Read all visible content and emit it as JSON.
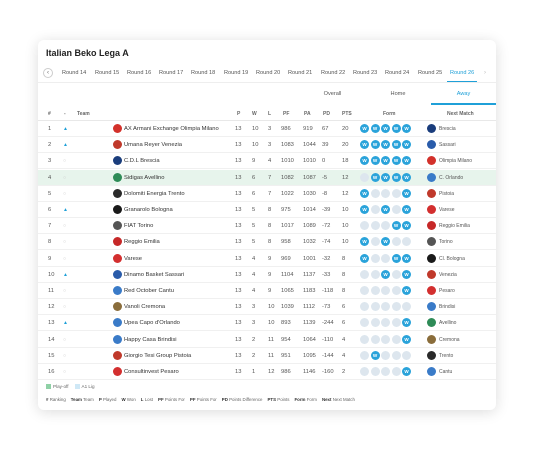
{
  "title": "Italian Beko Lega A",
  "rounds": [
    "Round 14",
    "Round 15",
    "Round 16",
    "Round 17",
    "Round 18",
    "Round 19",
    "Round 20",
    "Round 21",
    "Round 22",
    "Round 23",
    "Round 24",
    "Round 25",
    "Round 26"
  ],
  "active_round": "Round 26",
  "tabs": [
    "Overall",
    "Home",
    "Away"
  ],
  "active_tab": "Away",
  "columns": {
    "pos": "#",
    "move": "-",
    "team": "Team",
    "p": "P",
    "w": "W",
    "l": "L",
    "pf": "PF",
    "pa": "PA",
    "pd": "PD",
    "pts": "PTS",
    "form": "Form",
    "next": "Next Match"
  },
  "rows": [
    {
      "pos": "1",
      "move": "up",
      "team": "AX Armani Exchange Olimpia Milano",
      "p": "13",
      "w": "10",
      "l": "3",
      "pf": "986",
      "pa": "919",
      "pd": "67",
      "pts": "20",
      "form": [
        "W",
        "W",
        "W",
        "W",
        "W"
      ],
      "next": "Brescia",
      "logo": "#d3312b",
      "next_logo": "#1a3d7c",
      "highlight": false
    },
    {
      "pos": "2",
      "move": "up",
      "team": "Umana Reyer Venezia",
      "p": "13",
      "w": "10",
      "l": "3",
      "pf": "1083",
      "pa": "1044",
      "pd": "39",
      "pts": "20",
      "form": [
        "W",
        "W",
        "W",
        "W",
        "W"
      ],
      "next": "Sassari",
      "logo": "#c0392b",
      "next_logo": "#2a5caa",
      "highlight": false
    },
    {
      "pos": "3",
      "move": "none",
      "team": "C.D.L Brescia",
      "p": "13",
      "w": "9",
      "l": "4",
      "pf": "1010",
      "pa": "1010",
      "pd": "0",
      "pts": "18",
      "form": [
        "W",
        "W",
        "W",
        "W",
        "W"
      ],
      "next": "Olimpia Milano",
      "logo": "#1a3d7c",
      "next_logo": "#d3312b",
      "highlight": false
    },
    {
      "pos": "4",
      "move": "none",
      "team": "Sidigas Avellino",
      "p": "13",
      "w": "6",
      "l": "7",
      "pf": "1082",
      "pa": "1087",
      "pd": "-5",
      "pts": "12",
      "form": [
        "L",
        "W",
        "W",
        "W",
        "W"
      ],
      "next": "C. Orlando",
      "logo": "#2e8b57",
      "next_logo": "#3a7bc8",
      "highlight": true
    },
    {
      "pos": "5",
      "move": "none",
      "team": "Dolomiti Energia Trento",
      "p": "13",
      "w": "6",
      "l": "7",
      "pf": "1022",
      "pa": "1030",
      "pd": "-8",
      "pts": "12",
      "form": [
        "W",
        "L",
        "L",
        "L",
        "W"
      ],
      "next": "Pistoia",
      "logo": "#2a2a2a",
      "next_logo": "#c0392b",
      "highlight": false
    },
    {
      "pos": "6",
      "move": "up",
      "team": "Granarolo Bologna",
      "p": "13",
      "w": "5",
      "l": "8",
      "pf": "975",
      "pa": "1014",
      "pd": "-39",
      "pts": "10",
      "form": [
        "W",
        "L",
        "W",
        "L",
        "W"
      ],
      "next": "Varese",
      "logo": "#1a1a1a",
      "next_logo": "#d32f2f",
      "highlight": false
    },
    {
      "pos": "7",
      "move": "none",
      "team": "FIAT Torino",
      "p": "13",
      "w": "5",
      "l": "8",
      "pf": "1017",
      "pa": "1089",
      "pd": "-72",
      "pts": "10",
      "form": [
        "L",
        "L",
        "L",
        "W",
        "W"
      ],
      "next": "Reggio Emilia",
      "logo": "#555555",
      "next_logo": "#c62828",
      "highlight": false
    },
    {
      "pos": "8",
      "move": "none",
      "team": "Reggio Emilia",
      "p": "13",
      "w": "5",
      "l": "8",
      "pf": "958",
      "pa": "1032",
      "pd": "-74",
      "pts": "10",
      "form": [
        "W",
        "L",
        "W",
        "L",
        "L"
      ],
      "next": "Torino",
      "logo": "#c62828",
      "next_logo": "#555555",
      "highlight": false
    },
    {
      "pos": "9",
      "move": "none",
      "team": "Varese",
      "p": "13",
      "w": "4",
      "l": "9",
      "pf": "969",
      "pa": "1001",
      "pd": "-32",
      "pts": "8",
      "form": [
        "W",
        "L",
        "L",
        "W",
        "W"
      ],
      "next": "Cl. Bologna",
      "logo": "#d32f2f",
      "next_logo": "#1a1a1a",
      "highlight": false
    },
    {
      "pos": "10",
      "move": "up",
      "team": "Dinamo Basket Sassari",
      "p": "13",
      "w": "4",
      "l": "9",
      "pf": "1104",
      "pa": "1137",
      "pd": "-33",
      "pts": "8",
      "form": [
        "L",
        "L",
        "W",
        "L",
        "W"
      ],
      "next": "Venezia",
      "logo": "#2a5caa",
      "next_logo": "#c0392b",
      "highlight": false
    },
    {
      "pos": "11",
      "move": "none",
      "team": "Red October Cantu",
      "p": "13",
      "w": "4",
      "l": "9",
      "pf": "1065",
      "pa": "1183",
      "pd": "-118",
      "pts": "8",
      "form": [
        "L",
        "L",
        "L",
        "L",
        "W"
      ],
      "next": "Pesaro",
      "logo": "#3a7bc8",
      "next_logo": "#d32f2f",
      "highlight": false
    },
    {
      "pos": "12",
      "move": "none",
      "team": "Vanoli Cremona",
      "p": "13",
      "w": "3",
      "l": "10",
      "pf": "1039",
      "pa": "1112",
      "pd": "-73",
      "pts": "6",
      "form": [
        "L",
        "L",
        "L",
        "L",
        "L"
      ],
      "next": "Brindisi",
      "logo": "#8a6d3b",
      "next_logo": "#3a7bc8",
      "highlight": false
    },
    {
      "pos": "13",
      "move": "up",
      "team": "Upea Capo d'Orlando",
      "p": "13",
      "w": "3",
      "l": "10",
      "pf": "893",
      "pa": "1139",
      "pd": "-244",
      "pts": "6",
      "form": [
        "L",
        "L",
        "L",
        "L",
        "W"
      ],
      "next": "Avellino",
      "logo": "#3a7bc8",
      "next_logo": "#2e8b57",
      "highlight": false
    },
    {
      "pos": "14",
      "move": "none",
      "team": "Happy Casa Brindisi",
      "p": "13",
      "w": "2",
      "l": "11",
      "pf": "954",
      "pa": "1064",
      "pd": "-110",
      "pts": "4",
      "form": [
        "L",
        "L",
        "L",
        "L",
        "W"
      ],
      "next": "Cremona",
      "logo": "#3a7bc8",
      "next_logo": "#8a6d3b",
      "highlight": false
    },
    {
      "pos": "15",
      "move": "none",
      "team": "Giorgio Tesi Group Pistoia",
      "p": "13",
      "w": "2",
      "l": "11",
      "pf": "951",
      "pa": "1095",
      "pd": "-144",
      "pts": "4",
      "form": [
        "L",
        "W",
        "L",
        "L",
        "L"
      ],
      "next": "Trento",
      "logo": "#c0392b",
      "next_logo": "#2a2a2a",
      "highlight": false
    },
    {
      "pos": "16",
      "move": "none",
      "team": "Consultinvest Pesaro",
      "p": "13",
      "w": "1",
      "l": "12",
      "pf": "986",
      "pa": "1146",
      "pd": "-160",
      "pts": "2",
      "form": [
        "L",
        "L",
        "L",
        "L",
        "W"
      ],
      "next": "Cantu",
      "logo": "#d32f2f",
      "next_logo": "#3a7bc8",
      "highlight": false
    }
  ],
  "legend": [
    {
      "label": "Play-off",
      "color": "#8fd1a6"
    },
    {
      "label": "A1 Lig",
      "color": "#cfe8f6"
    }
  ],
  "abbreviations": [
    {
      "key": "#",
      "desc": "Ranking"
    },
    {
      "key": "Team",
      "desc": "Team"
    },
    {
      "key": "P",
      "desc": "Played"
    },
    {
      "key": "W",
      "desc": "Won"
    },
    {
      "key": "L",
      "desc": "Lost"
    },
    {
      "key": "PF",
      "desc": "Points For"
    },
    {
      "key": "PF",
      "desc": "Points For"
    },
    {
      "key": "PD",
      "desc": "Points Difference"
    },
    {
      "key": "PTS",
      "desc": "Points"
    },
    {
      "key": "Form",
      "desc": "Form"
    },
    {
      "key": "Next",
      "desc": "Next Match"
    }
  ]
}
